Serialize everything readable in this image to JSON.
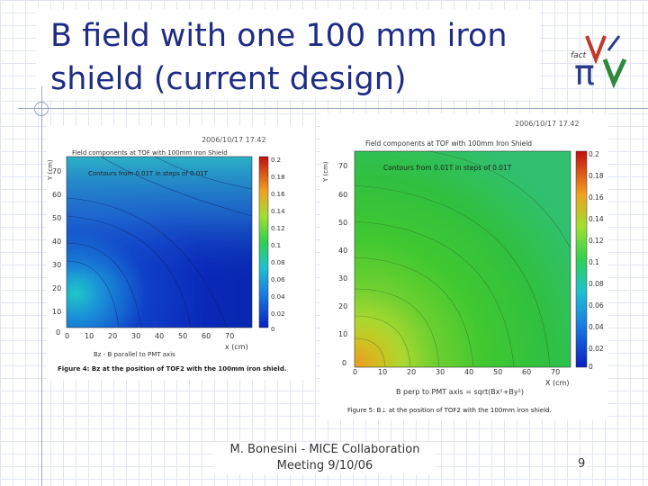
{
  "slide": {
    "title_line1": "B field with one 100 mm iron",
    "title_line2": "shield (current design)",
    "footer_line1": "M. Bonesini - MICE Collaboration",
    "footer_line2": "Meeting 9/10/06",
    "page_number": "9",
    "logo_text": "fact"
  },
  "plots": {
    "left": {
      "timestamp": "2006/10/17 17.42",
      "title": "Field components at TOF with 100mm Iron Shield",
      "annotation": "Contours from 0.01T in steps of 0.01T",
      "ylabel": "Y (cm)",
      "xlabel": "x (cm)",
      "component_label": "Bz - B parallel to PMT axis",
      "caption": "Figure 4: Bz at the position of TOF2 with the 100mm iron shield.",
      "x_ticks": [
        "0",
        "10",
        "20",
        "30",
        "40",
        "50",
        "60",
        "70"
      ],
      "y_ticks": [
        "70",
        "60",
        "50",
        "40",
        "30",
        "20",
        "10",
        "0"
      ],
      "scale_ticks": [
        "0.2",
        "0.18",
        "0.16",
        "0.14",
        "0.12",
        "0.1",
        "0.08",
        "0.06",
        "0.04",
        "0.02",
        "0"
      ]
    },
    "right": {
      "timestamp": "2006/10/17 17.42",
      "title": "Field components at TOF with 100mm Iron Shield",
      "annotation": "Contours from 0.01T in steps of 0.01T",
      "ylabel": "Y (cm)",
      "xlabel": "X (cm)",
      "component_label": "B perp to PMT axis = sqrt(Bx²+By²)",
      "caption": "Figure 5: B⊥ at the position of TOF2 with the 100mm iron shield.",
      "x_ticks": [
        "0",
        "10",
        "20",
        "30",
        "40",
        "50",
        "60",
        "70"
      ],
      "y_ticks": [
        "70",
        "60",
        "50",
        "40",
        "30",
        "20",
        "10",
        "0"
      ],
      "scale_ticks": [
        "0.2",
        "0.18",
        "0.16",
        "0.14",
        "0.12",
        "0.1",
        "0.08",
        "0.06",
        "0.04",
        "0.02",
        "0"
      ]
    }
  },
  "colors": {
    "title": "#1f2c86",
    "line": "#9aa2c4"
  }
}
